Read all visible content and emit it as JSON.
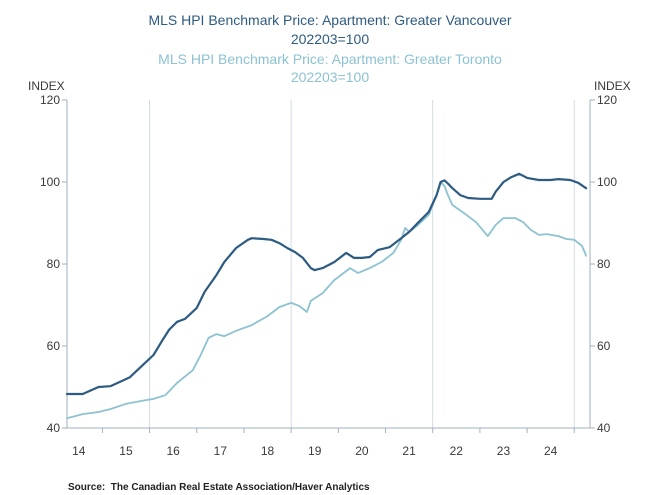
{
  "chart_data": {
    "type": "line",
    "ylabel_left": "INDEX",
    "ylabel_right": "INDEX",
    "ylim": [
      40,
      120
    ],
    "yticks": [
      40,
      60,
      80,
      100,
      120
    ],
    "xlim": [
      "2014-04",
      "2025-05"
    ],
    "xtick_labels": [
      "14",
      "15",
      "16",
      "17",
      "18",
      "19",
      "20",
      "21",
      "22",
      "23",
      "24"
    ],
    "xgrid": [
      "2016-01",
      "2019-01",
      "2022-01",
      "2025-01"
    ],
    "series": [
      {
        "name": "MLS HPI Benchmark Price: Apartment: Greater Vancouver",
        "subtitle": "202203=100",
        "color": "#2e5b82",
        "x": [
          "2014-04",
          "2014-08",
          "2014-12",
          "2015-03",
          "2015-06",
          "2015-08",
          "2015-11",
          "2016-02",
          "2016-04",
          "2016-06",
          "2016-08",
          "2016-10",
          "2017-01",
          "2017-03",
          "2017-06",
          "2017-08",
          "2017-11",
          "2018-02",
          "2018-03",
          "2018-06",
          "2018-08",
          "2018-10",
          "2018-12",
          "2019-02",
          "2019-04",
          "2019-06",
          "2019-07",
          "2019-09",
          "2019-12",
          "2020-03",
          "2020-05",
          "2020-07",
          "2020-09",
          "2020-11",
          "2021-02",
          "2021-05",
          "2021-07",
          "2021-09",
          "2021-12",
          "2022-02",
          "2022-03",
          "2022-04",
          "2022-05",
          "2022-06",
          "2022-08",
          "2022-10",
          "2023-01",
          "2023-04",
          "2023-05",
          "2023-07",
          "2023-09",
          "2023-11",
          "2024-01",
          "2024-04",
          "2024-07",
          "2024-09",
          "2024-12",
          "2025-02",
          "2025-04"
        ],
        "y": [
          48.3,
          48.3,
          50.0,
          50.2,
          51.5,
          52.4,
          55.1,
          57.8,
          61.0,
          64.0,
          65.9,
          66.6,
          69.3,
          73.2,
          77.3,
          80.5,
          83.9,
          85.9,
          86.3,
          86.1,
          85.9,
          85.1,
          83.9,
          82.9,
          81.5,
          79.0,
          78.5,
          79.0,
          80.5,
          82.7,
          81.5,
          81.5,
          81.7,
          83.4,
          84.1,
          86.3,
          87.8,
          89.8,
          92.7,
          96.8,
          100.0,
          100.4,
          99.5,
          98.5,
          96.8,
          96.1,
          95.9,
          95.9,
          97.6,
          100.0,
          101.2,
          102.0,
          101.0,
          100.5,
          100.5,
          100.7,
          100.5,
          99.8,
          98.5
        ]
      },
      {
        "name": "MLS HPI Benchmark Price: Apartment: Greater Toronto",
        "subtitle": "202203=100",
        "color": "#8cc2d1",
        "x": [
          "2014-04",
          "2014-08",
          "2014-12",
          "2015-03",
          "2015-07",
          "2015-11",
          "2016-02",
          "2016-05",
          "2016-08",
          "2016-12",
          "2017-02",
          "2017-04",
          "2017-06",
          "2017-08",
          "2017-11",
          "2018-03",
          "2018-07",
          "2018-10",
          "2019-01",
          "2019-03",
          "2019-05",
          "2019-06",
          "2019-09",
          "2019-12",
          "2020-04",
          "2020-06",
          "2020-09",
          "2020-12",
          "2021-03",
          "2021-05",
          "2021-06",
          "2021-07",
          "2021-09",
          "2021-12",
          "2022-02",
          "2022-03",
          "2022-04",
          "2022-05",
          "2022-06",
          "2022-09",
          "2022-12",
          "2023-03",
          "2023-05",
          "2023-07",
          "2023-10",
          "2023-12",
          "2024-02",
          "2024-04",
          "2024-06",
          "2024-09",
          "2024-11",
          "2025-01",
          "2025-03",
          "2025-04"
        ],
        "y": [
          42.4,
          43.4,
          43.9,
          44.6,
          45.9,
          46.6,
          47.1,
          48.0,
          51.0,
          54.1,
          57.8,
          62.0,
          62.9,
          62.4,
          63.7,
          65.1,
          67.3,
          69.5,
          70.5,
          69.8,
          68.3,
          71.0,
          72.9,
          76.1,
          79.0,
          77.8,
          79.0,
          80.5,
          82.7,
          85.9,
          88.8,
          87.8,
          89.3,
          92.0,
          96.8,
          100.0,
          99.0,
          96.5,
          94.4,
          92.4,
          90.2,
          86.8,
          89.5,
          91.2,
          91.2,
          90.2,
          88.3,
          87.1,
          87.3,
          86.8,
          86.1,
          85.9,
          84.4,
          82.0
        ]
      }
    ],
    "source": "Source:  The Canadian Real Estate Association/Haver Analytics"
  }
}
